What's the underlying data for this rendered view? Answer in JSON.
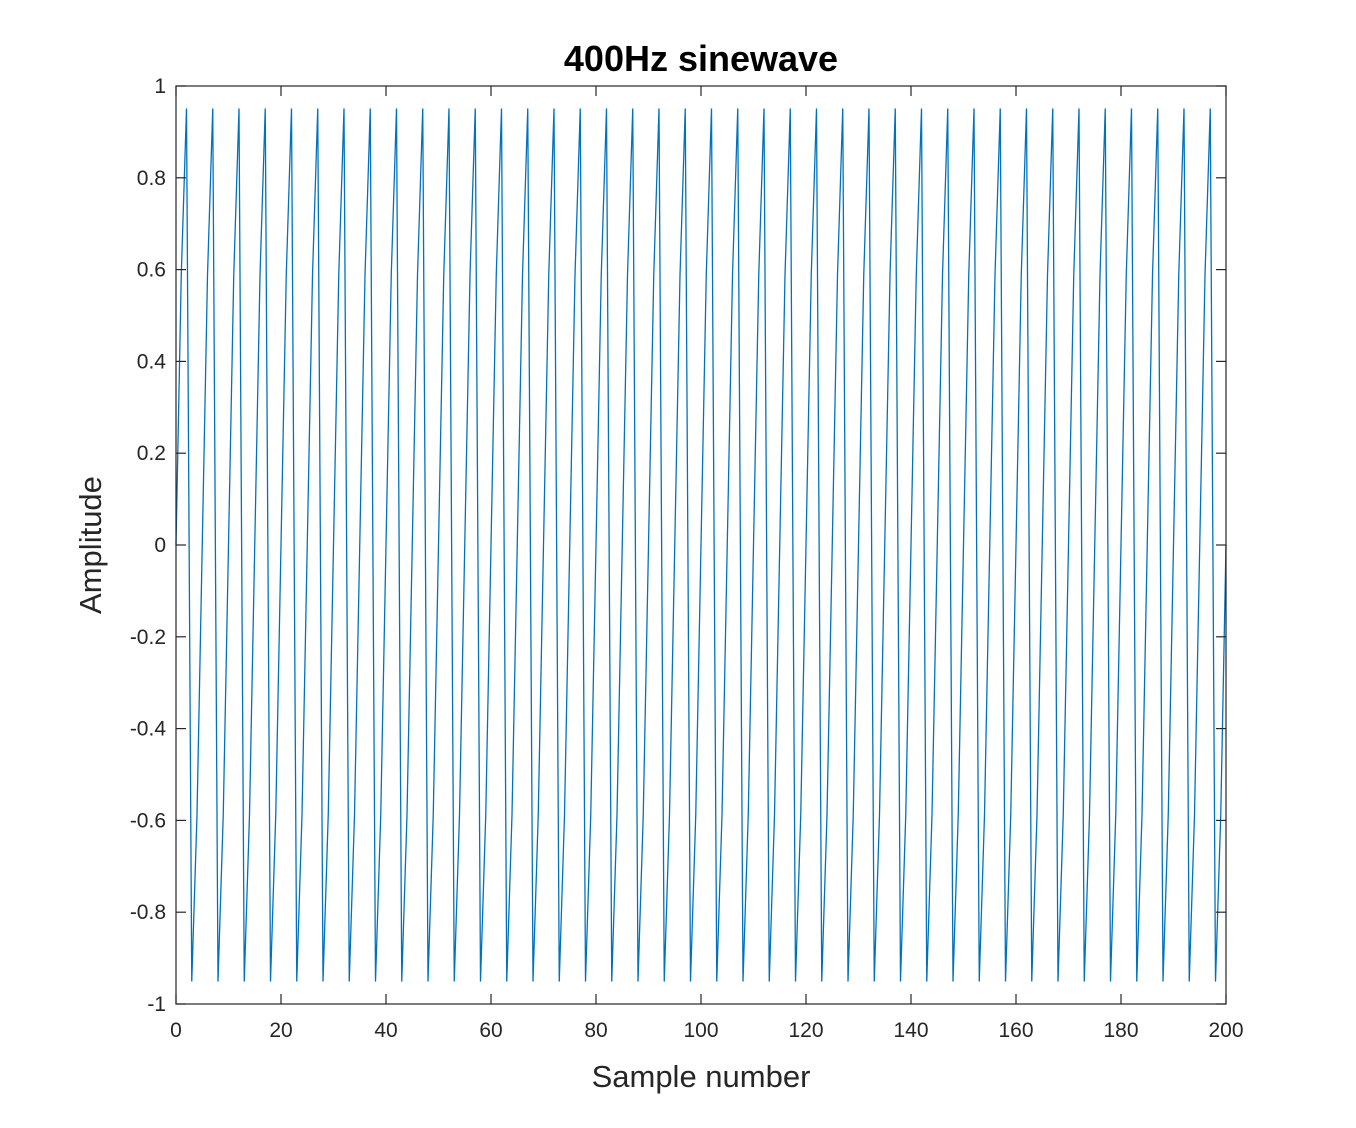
{
  "chart_data": {
    "type": "line",
    "title": "400Hz sinewave",
    "xlabel": "Sample number",
    "ylabel": "Amplitude",
    "xlim": [
      0,
      200
    ],
    "ylim": [
      -1,
      1
    ],
    "xticks": [
      0,
      20,
      40,
      60,
      80,
      100,
      120,
      140,
      160,
      180,
      200
    ],
    "xtick_labels": [
      "0",
      "20",
      "40",
      "60",
      "80",
      "100",
      "120",
      "140",
      "160",
      "180",
      "200"
    ],
    "yticks": [
      -1,
      -0.8,
      -0.6,
      -0.4,
      -0.2,
      0,
      0.2,
      0.4,
      0.6,
      0.8,
      1
    ],
    "ytick_labels": [
      "-1",
      "-0.8",
      "-0.6",
      "-0.4",
      "-0.2",
      "0",
      "0.2",
      "0.4",
      "0.6",
      "0.8",
      "1"
    ],
    "grid": false,
    "series": [
      {
        "color": "#0072BD",
        "x_start": 0,
        "x_end": 200,
        "x_step": 1,
        "period_samples": 5,
        "cycle_values": [
          0,
          0.5878,
          0.9511,
          -0.9511,
          -0.5878
        ],
        "peak_amplitude": 0.9511
      }
    ]
  }
}
